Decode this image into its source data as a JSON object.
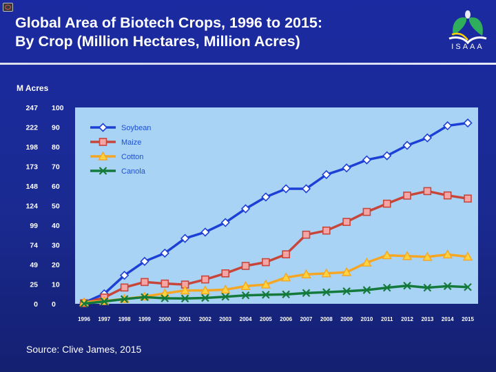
{
  "title": {
    "line1": "Global Area of Biotech Crops, 1996 to 2015:",
    "line2": "By Crop (Million Hectares, Million Acres)"
  },
  "logo_text": "ISAAA",
  "source": "Source: Clive James, 2015",
  "colors": {
    "plot_bg": "#a9d3f5",
    "soybean": "#1c3fd6",
    "maize": "#c8453a",
    "cotton": "#f5a623",
    "canola": "#137a3b"
  },
  "chart_data": {
    "type": "line",
    "title": "Global Area of Biotech Crops, 1996 to 2015: By Crop (Million Hectares, Million Acres)",
    "x": [
      1996,
      1997,
      1998,
      1999,
      2000,
      2001,
      2002,
      2003,
      2004,
      2005,
      2006,
      2007,
      2008,
      2009,
      2010,
      2011,
      2012,
      2013,
      2014,
      2015
    ],
    "ylim": [
      0,
      100
    ],
    "ylabel_secondary": "M Acres",
    "y_ticks_hectares": [
      "0",
      "10",
      "20",
      "30",
      "40",
      "50",
      "60",
      "70",
      "80",
      "90",
      "100"
    ],
    "y_ticks_acres": [
      "0",
      "25",
      "49",
      "74",
      "99",
      "124",
      "148",
      "173",
      "198",
      "222",
      "247"
    ],
    "legend_position": "top-left",
    "grid": false,
    "series": [
      {
        "name": "Soybean",
        "marker": "diamond",
        "values": [
          0.5,
          5.1,
          14.5,
          21.6,
          25.8,
          33.3,
          36.5,
          41.4,
          48.4,
          54.4,
          58.6,
          58.6,
          65.8,
          69.2,
          73.3,
          75.4,
          80.7,
          84.5,
          90.7,
          92.1
        ]
      },
      {
        "name": "Maize",
        "marker": "square",
        "values": [
          0.3,
          3.2,
          8.3,
          11.1,
          10.3,
          9.8,
          12.4,
          15.5,
          19.3,
          21.2,
          25.2,
          35.2,
          37.3,
          41.7,
          46.8,
          51.0,
          55.1,
          57.4,
          55.2,
          53.6
        ]
      },
      {
        "name": "Cotton",
        "marker": "triangle",
        "values": [
          0.8,
          1.4,
          2.5,
          3.7,
          5.3,
          6.8,
          6.8,
          7.2,
          9.0,
          9.8,
          13.4,
          15.0,
          15.5,
          16.1,
          21.0,
          24.7,
          24.3,
          23.9,
          25.1,
          24.0
        ]
      },
      {
        "name": "Canola",
        "marker": "x",
        "values": [
          0.1,
          1.2,
          2.4,
          3.4,
          2.8,
          2.7,
          3.0,
          3.6,
          4.3,
          4.6,
          4.8,
          5.5,
          5.9,
          6.4,
          7.0,
          8.2,
          9.2,
          8.2,
          9.0,
          8.5
        ]
      }
    ]
  }
}
